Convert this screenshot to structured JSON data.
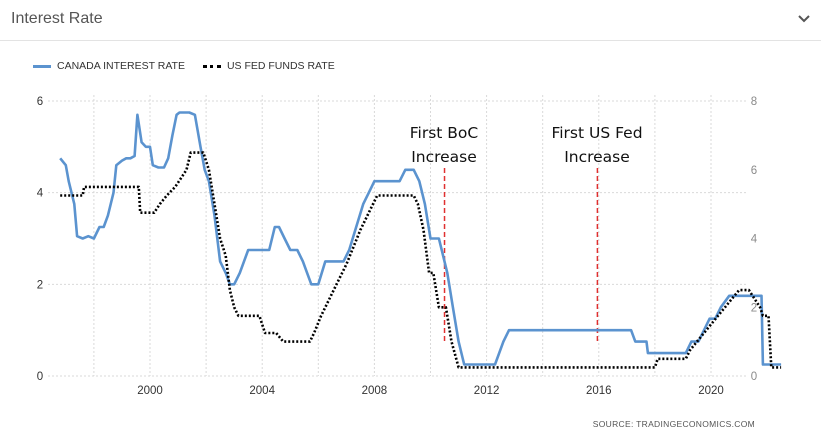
{
  "header": {
    "title": "Interest Rate",
    "chevron_icon": "chevron-down-icon"
  },
  "legend": {
    "canada_label": "CANADA INTEREST RATE",
    "us_label": "US FED FUNDS RATE"
  },
  "annotations": {
    "boc_line1": "First BoC",
    "boc_line2": "Increase",
    "fed_line1": "First US Fed",
    "fed_line2": "Increase"
  },
  "source": "SOURCE:   TRADINGECONOMICS.COM",
  "colors": {
    "canada": "#5b93cf",
    "us": "#000000",
    "annotation": "#e03030",
    "grid": "#d9d9d9"
  },
  "chart_data": {
    "type": "line",
    "x_ticks": [
      "2000",
      "2004",
      "2008",
      "2012",
      "2016",
      "2020"
    ],
    "y_left_ticks": [
      "0",
      "2",
      "4",
      "6"
    ],
    "y_right_ticks": [
      "0",
      "2",
      "4",
      "6",
      "8"
    ],
    "ylim_left": [
      0,
      6
    ],
    "ylim_right": [
      0,
      8
    ],
    "xlim": [
      1996.8,
      2021.3
    ],
    "grid": true,
    "legend_position": "top-left",
    "annotations": [
      {
        "x": 2010.5,
        "label": "First BoC Increase"
      },
      {
        "x": 2015.95,
        "label": "First US Fed Increase"
      }
    ],
    "series": [
      {
        "name": "CANADA INTEREST RATE",
        "axis": "left",
        "style": "solid",
        "points": [
          [
            1996.8,
            4.75
          ],
          [
            1997.0,
            4.6
          ],
          [
            1997.1,
            4.25
          ],
          [
            1997.3,
            3.75
          ],
          [
            1997.4,
            3.05
          ],
          [
            1997.6,
            3.0
          ],
          [
            1997.8,
            3.05
          ],
          [
            1998.0,
            3.0
          ],
          [
            1998.2,
            3.25
          ],
          [
            1998.35,
            3.25
          ],
          [
            1998.5,
            3.5
          ],
          [
            1998.7,
            4.0
          ],
          [
            1998.8,
            4.6
          ],
          [
            1999.0,
            4.7
          ],
          [
            1999.15,
            4.75
          ],
          [
            1999.3,
            4.75
          ],
          [
            1999.45,
            4.8
          ],
          [
            1999.55,
            5.7
          ],
          [
            1999.7,
            5.1
          ],
          [
            1999.85,
            5.0
          ],
          [
            2000.0,
            5.0
          ],
          [
            2000.1,
            4.6
          ],
          [
            2000.3,
            4.55
          ],
          [
            2000.5,
            4.55
          ],
          [
            2000.65,
            4.75
          ],
          [
            2000.8,
            5.25
          ],
          [
            2000.95,
            5.7
          ],
          [
            2001.05,
            5.75
          ],
          [
            2001.2,
            5.75
          ],
          [
            2001.4,
            5.75
          ],
          [
            2001.6,
            5.7
          ],
          [
            2001.8,
            5.0
          ],
          [
            2001.95,
            4.5
          ],
          [
            2002.1,
            4.25
          ],
          [
            2002.3,
            3.5
          ],
          [
            2002.5,
            2.5
          ],
          [
            2002.7,
            2.25
          ],
          [
            2002.85,
            2.0
          ],
          [
            2003.0,
            2.0
          ],
          [
            2003.2,
            2.25
          ],
          [
            2003.35,
            2.5
          ],
          [
            2003.5,
            2.75
          ],
          [
            2004.0,
            2.75
          ],
          [
            2004.25,
            2.75
          ],
          [
            2004.45,
            3.25
          ],
          [
            2004.6,
            3.25
          ],
          [
            2004.8,
            3.0
          ],
          [
            2005.0,
            2.75
          ],
          [
            2005.25,
            2.75
          ],
          [
            2005.45,
            2.5
          ],
          [
            2005.6,
            2.25
          ],
          [
            2005.75,
            2.0
          ],
          [
            2006.0,
            2.0
          ],
          [
            2006.25,
            2.5
          ],
          [
            2006.5,
            2.5
          ],
          [
            2006.9,
            2.5
          ],
          [
            2007.1,
            2.75
          ],
          [
            2007.35,
            3.25
          ],
          [
            2007.6,
            3.75
          ],
          [
            2007.8,
            4.0
          ],
          [
            2008.0,
            4.25
          ],
          [
            2008.2,
            4.25
          ],
          [
            2008.5,
            4.25
          ],
          [
            2008.9,
            4.25
          ],
          [
            2009.1,
            4.5
          ],
          [
            2009.4,
            4.5
          ],
          [
            2009.6,
            4.25
          ],
          [
            2009.8,
            3.75
          ],
          [
            2010.0,
            3.0
          ],
          [
            2010.3,
            3.0
          ],
          [
            2010.6,
            2.25
          ],
          [
            2010.8,
            1.5
          ],
          [
            2011.0,
            0.75
          ],
          [
            2011.2,
            0.25
          ],
          [
            2011.4,
            0.25
          ],
          [
            2011.7,
            0.25
          ],
          [
            2012.0,
            0.25
          ],
          [
            2012.3,
            0.25
          ],
          [
            2012.45,
            0.5
          ],
          [
            2012.6,
            0.75
          ],
          [
            2012.8,
            1.0
          ],
          [
            2013.5,
            1.0
          ],
          [
            2015.0,
            1.0
          ],
          [
            2016.5,
            1.0
          ],
          [
            2017.15,
            1.0
          ],
          [
            2017.3,
            0.75
          ],
          [
            2017.7,
            0.75
          ],
          [
            2017.75,
            0.5
          ],
          [
            2018.0,
            0.5
          ],
          [
            2018.5,
            0.5
          ],
          [
            2019.1,
            0.5
          ],
          [
            2019.3,
            0.75
          ],
          [
            2019.55,
            0.75
          ],
          [
            2019.75,
            1.0
          ],
          [
            2019.95,
            1.25
          ],
          [
            2020.15,
            1.25
          ],
          [
            2020.35,
            1.5
          ],
          [
            2020.65,
            1.75
          ],
          [
            2021.0,
            1.75
          ],
          [
            2021.4,
            1.75
          ],
          [
            2021.5,
            1.75
          ],
          [
            2021.7,
            1.75
          ],
          [
            2021.8,
            1.75
          ],
          [
            2021.85,
            0.25
          ],
          [
            2022.5,
            0.25
          ]
        ]
      },
      {
        "name": "US FED FUNDS RATE",
        "axis": "right",
        "style": "dotted",
        "points": [
          [
            1996.8,
            5.25
          ],
          [
            1997.3,
            5.25
          ],
          [
            1997.6,
            5.25
          ],
          [
            1997.65,
            5.5
          ],
          [
            1998.2,
            5.5
          ],
          [
            1998.8,
            5.5
          ],
          [
            1999.45,
            5.5
          ],
          [
            1999.6,
            5.5
          ],
          [
            1999.65,
            4.75
          ],
          [
            1999.8,
            4.75
          ],
          [
            2000.15,
            4.75
          ],
          [
            2000.35,
            5.0
          ],
          [
            2000.6,
            5.25
          ],
          [
            2000.9,
            5.5
          ],
          [
            2001.1,
            5.75
          ],
          [
            2001.3,
            6.0
          ],
          [
            2001.45,
            6.5
          ],
          [
            2001.65,
            6.5
          ],
          [
            2001.9,
            6.5
          ],
          [
            2002.1,
            6.0
          ],
          [
            2002.3,
            5.0
          ],
          [
            2002.5,
            4.0
          ],
          [
            2002.7,
            3.5
          ],
          [
            2002.85,
            2.5
          ],
          [
            2003.0,
            2.0
          ],
          [
            2003.15,
            1.75
          ],
          [
            2003.3,
            1.75
          ],
          [
            2003.9,
            1.75
          ],
          [
            2004.1,
            1.25
          ],
          [
            2004.5,
            1.25
          ],
          [
            2004.75,
            1.0
          ],
          [
            2005.2,
            1.0
          ],
          [
            2005.5,
            1.0
          ],
          [
            2005.7,
            1.0
          ],
          [
            2005.85,
            1.25
          ],
          [
            2006.1,
            1.75
          ],
          [
            2006.4,
            2.25
          ],
          [
            2006.7,
            2.75
          ],
          [
            2007.0,
            3.25
          ],
          [
            2007.25,
            3.75
          ],
          [
            2007.5,
            4.25
          ],
          [
            2007.8,
            4.75
          ],
          [
            2008.1,
            5.25
          ],
          [
            2008.5,
            5.25
          ],
          [
            2009.1,
            5.25
          ],
          [
            2009.4,
            5.25
          ],
          [
            2009.55,
            5.0
          ],
          [
            2009.75,
            4.25
          ],
          [
            2009.95,
            3.0
          ],
          [
            2010.1,
            3.0
          ],
          [
            2010.3,
            2.0
          ],
          [
            2010.55,
            2.0
          ],
          [
            2010.75,
            1.0
          ],
          [
            2011.0,
            0.25
          ],
          [
            2011.3,
            0.25
          ],
          [
            2012.5,
            0.25
          ],
          [
            2014.0,
            0.25
          ],
          [
            2016.0,
            0.25
          ],
          [
            2017.5,
            0.25
          ],
          [
            2018.0,
            0.25
          ],
          [
            2018.1,
            0.5
          ],
          [
            2018.5,
            0.5
          ],
          [
            2019.1,
            0.5
          ],
          [
            2019.25,
            0.75
          ],
          [
            2019.5,
            1.0
          ],
          [
            2019.75,
            1.25
          ],
          [
            2020.0,
            1.5
          ],
          [
            2020.25,
            1.75
          ],
          [
            2020.5,
            2.0
          ],
          [
            2020.75,
            2.25
          ],
          [
            2021.0,
            2.5
          ],
          [
            2021.35,
            2.5
          ],
          [
            2021.55,
            2.25
          ],
          [
            2021.75,
            2.0
          ],
          [
            2021.85,
            1.75
          ],
          [
            2022.05,
            1.75
          ],
          [
            2022.15,
            0.25
          ],
          [
            2022.5,
            0.25
          ]
        ]
      }
    ]
  }
}
